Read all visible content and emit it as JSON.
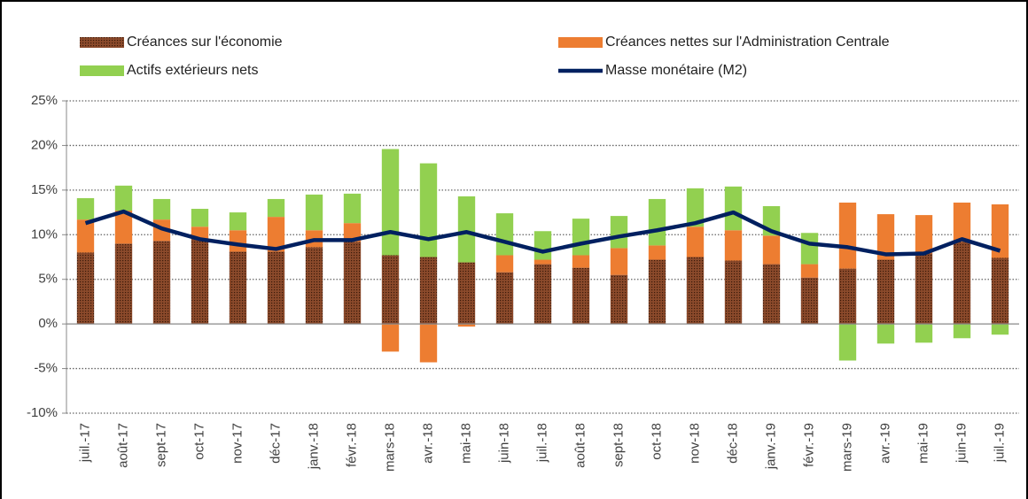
{
  "chart_data": {
    "type": "stacked_bar_line",
    "categories": [
      "juil.-17",
      "août-17",
      "sept-17",
      "oct-17",
      "nov-17",
      "déc-17",
      "janv.-18",
      "févr.-18",
      "mars-18",
      "avr.-18",
      "mai-18",
      "juin-18",
      "juil.-18",
      "août-18",
      "sept-18",
      "oct-18",
      "nov-18",
      "déc-18",
      "janv.-19",
      "févr.-19",
      "mars-19",
      "avr.-19",
      "mai-19",
      "juin-19",
      "juil.-19"
    ],
    "series": [
      {
        "name": "Créances sur l'économie",
        "type": "bar",
        "color": "#8b4a2b",
        "values": [
          8.0,
          9.0,
          9.3,
          9.5,
          8.1,
          8.1,
          8.6,
          9.2,
          7.7,
          7.5,
          6.9,
          5.8,
          6.7,
          6.3,
          5.5,
          7.2,
          7.5,
          7.1,
          6.7,
          5.2,
          6.2,
          7.2,
          7.9,
          9.2,
          7.4
        ]
      },
      {
        "name": "Créances nettes sur l'Administration Centrale",
        "type": "bar",
        "color": "#ed7d31",
        "values": [
          3.7,
          3.7,
          2.4,
          1.4,
          2.4,
          3.9,
          1.9,
          2.1,
          -3.1,
          -4.3,
          -0.3,
          1.9,
          0.5,
          1.4,
          3.0,
          1.6,
          3.4,
          3.4,
          3.2,
          1.5,
          7.4,
          5.1,
          4.3,
          4.4,
          6.0
        ]
      },
      {
        "name": "Actifs extérieurs nets",
        "type": "bar",
        "color": "#92d050",
        "values": [
          2.4,
          2.8,
          2.3,
          2.0,
          2.0,
          2.0,
          4.0,
          3.3,
          11.9,
          10.5,
          7.4,
          4.7,
          3.2,
          4.1,
          3.6,
          5.2,
          4.3,
          4.9,
          3.3,
          3.5,
          -4.1,
          -2.2,
          -2.1,
          -1.6,
          -1.2
        ]
      },
      {
        "name": "Masse monétaire (M2)",
        "type": "line",
        "color": "#002060",
        "values": [
          11.3,
          12.6,
          10.7,
          9.5,
          8.9,
          8.4,
          9.4,
          9.4,
          10.3,
          9.5,
          10.3,
          9.2,
          8.1,
          9.0,
          9.8,
          10.5,
          11.3,
          12.5,
          10.4,
          9.0,
          8.6,
          7.8,
          7.9,
          9.5,
          8.2
        ]
      }
    ],
    "ylim": [
      -10,
      25
    ],
    "yticks": [
      {
        "value": -10,
        "label": "-10%"
      },
      {
        "value": -5,
        "label": "-5%"
      },
      {
        "value": 0,
        "label": "0%"
      },
      {
        "value": 5,
        "label": "5%"
      },
      {
        "value": 10,
        "label": "10%"
      },
      {
        "value": 15,
        "label": "15%"
      },
      {
        "value": 20,
        "label": "20%"
      },
      {
        "value": 25,
        "label": "25%"
      }
    ],
    "grid": true
  }
}
